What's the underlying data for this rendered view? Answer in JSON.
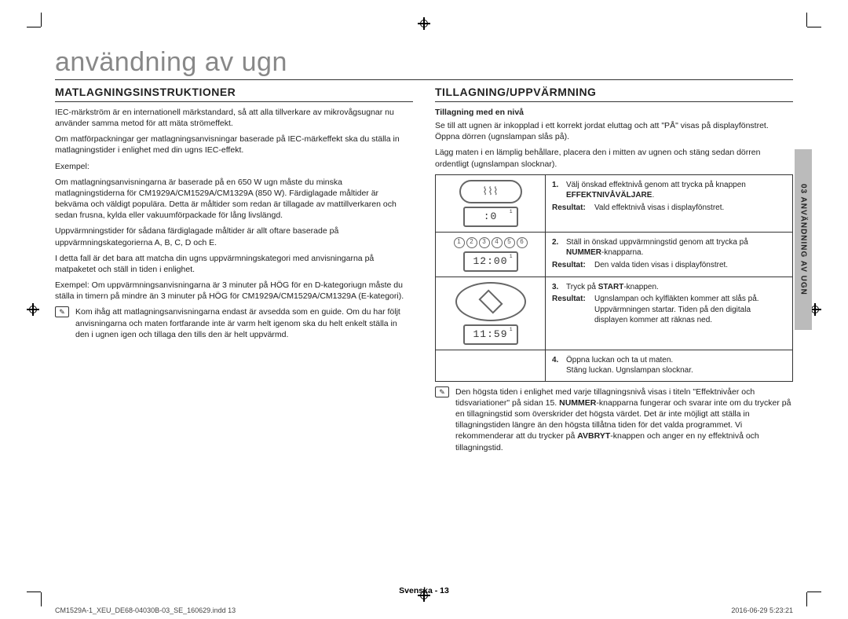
{
  "chapter_title": "användning av ugn",
  "sidebar_tab": "03  ANVÄNDNING AV UGN",
  "left": {
    "heading": "MATLAGNINGSINSTRUKTIONER",
    "p1": "IEC-märkström är en internationell märkstandard, så att alla tillverkare av mikrovågsugnar nu använder samma metod för att mäta strömeffekt.",
    "p2": "Om matförpackningar ger matlagningsanvisningar baserade på IEC-märkeffekt ska du ställa in matlagningstider i enlighet med din ugns IEC-effekt.",
    "p3": "Exempel:",
    "p4": "Om matlagningsanvisningarna är baserade på en 650 W ugn måste du minska matlagningstiderna för CM1929A/CM1529A/CM1329A (850 W). Färdiglagade måltider är bekväma och väldigt populära. Detta är måltider som redan är tillagade av mattillverkaren och sedan frusna, kylda eller vakuumförpackade för lång livslängd.",
    "p5": "Uppvärmningstider för sådana färdiglagade måltider är allt oftare baserade på uppvärmningskategorierna A, B, C, D och E.",
    "p6": "I detta fall är det bara att matcha din ugns uppvärmningskategori med anvisningarna på matpaketet och ställ in tiden i enlighet.",
    "p7": "Exempel: Om uppvärmningsanvisningarna är 3 minuter på HÖG för en D-kategoriugn måste du ställa in timern på mindre än 3 minuter på HÖG för CM1929A/CM1529A/CM1329A (E-kategori).",
    "note_icon": "✎",
    "note": "Kom ihåg att matlagningsanvisningarna endast är avsedda som en guide. Om du har följt anvisningarna och maten fortfarande inte är varm helt igenom ska du helt enkelt ställa in den i ugnen igen och tillaga den tills den är helt uppvärmd."
  },
  "right": {
    "heading": "TILLAGNING/UPPVÄRMNING",
    "subhead": "Tillagning med en nivå",
    "intro1": "Se till att ugnen är inkopplad i ett korrekt jordat eluttag och att \"PÅ\" visas på displayfönstret. Öppna dörren (ugnslampan slås på).",
    "intro2": "Lägg maten i en lämplig behållare, placera den i mitten av ugnen och stäng sedan dörren ordentligt (ugnslampan slocknar).",
    "steps": [
      {
        "num": "1.",
        "text_pre": "Välj önskad effektnivå genom att trycka på knappen ",
        "bold": "EFFEKTNIVÅVÄLJARE",
        "text_post": ".",
        "result": "Vald effektnivå visas i displayfönstret.",
        "display": ":0",
        "icon": "power"
      },
      {
        "num": "2.",
        "text_pre": "Ställ in önskad uppvärmningstid genom att trycka på ",
        "bold": "NUMMER",
        "text_post": "-knapparna.",
        "result": "Den valda tiden visas i displayfönstret.",
        "display": "12:00",
        "icon": "keys"
      },
      {
        "num": "3.",
        "text_pre": "Tryck på ",
        "bold": "START",
        "text_post": "-knappen.",
        "result": "Ugnslampan och kylfläkten kommer att slås på. Uppvärmningen startar. Tiden på den digitala displayen kommer att räknas ned.",
        "display": "11:59",
        "icon": "start"
      },
      {
        "num": "4.",
        "text_pre": "Öppna luckan och ta ut maten.",
        "bold": "",
        "text_post": "",
        "extra": "Stäng luckan. Ugnslampan slocknar.",
        "icon": "none"
      }
    ],
    "footnote_icon": "✎",
    "footnote_a": "Den högsta tiden i enlighet med varje tillagningsnivå visas i titeln \"Effektnivåer och tidsvariationer\" på sidan 15. ",
    "footnote_bold1": "NUMMER",
    "footnote_b": "-knapparna fungerar och svarar inte om du trycker på en tillagningstid som överskrider det högsta värdet. Det är inte möjligt att ställa in tillagningstiden längre än den högsta tillåtna tiden för det valda programmet. Vi rekommenderar att du trycker på ",
    "footnote_bold2": "AVBRYT",
    "footnote_c": "-knappen och anger en ny effektnivå och tillagningstid."
  },
  "footer_center": "Svenska - 13",
  "footer_left": "CM1529A-1_XEU_DE68-04030B-03_SE_160629.indd   13",
  "footer_right": "2016-06-29     5:23:21",
  "num_keys": [
    "1",
    "2",
    "3",
    "4",
    "5",
    "6"
  ],
  "power_glyph": "⌇⌇⌇",
  "result_label": "Resultat:"
}
